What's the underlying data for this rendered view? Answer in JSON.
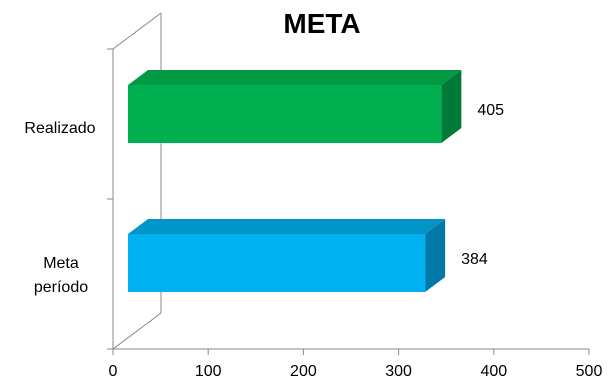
{
  "chart_data": {
    "type": "bar",
    "orientation": "horizontal",
    "style": "3d",
    "title": "META",
    "categories": [
      "Realizado",
      "Meta período"
    ],
    "values": [
      405,
      384
    ],
    "data_labels": [
      "405",
      "384"
    ],
    "xlim": [
      0,
      500
    ],
    "x_ticks": [
      0,
      100,
      200,
      300,
      400,
      500
    ],
    "x_tick_labels": [
      "0",
      "100",
      "200",
      "300",
      "400",
      "500"
    ],
    "xlabel": "",
    "ylabel": "",
    "grid": false,
    "legend": "none",
    "colors": {
      "Realizado": {
        "front": "#00b050",
        "top": "#009a45",
        "side": "#007a36"
      },
      "Meta período": {
        "front": "#00b0f0",
        "top": "#0094c8",
        "side": "#0078a8"
      }
    }
  }
}
